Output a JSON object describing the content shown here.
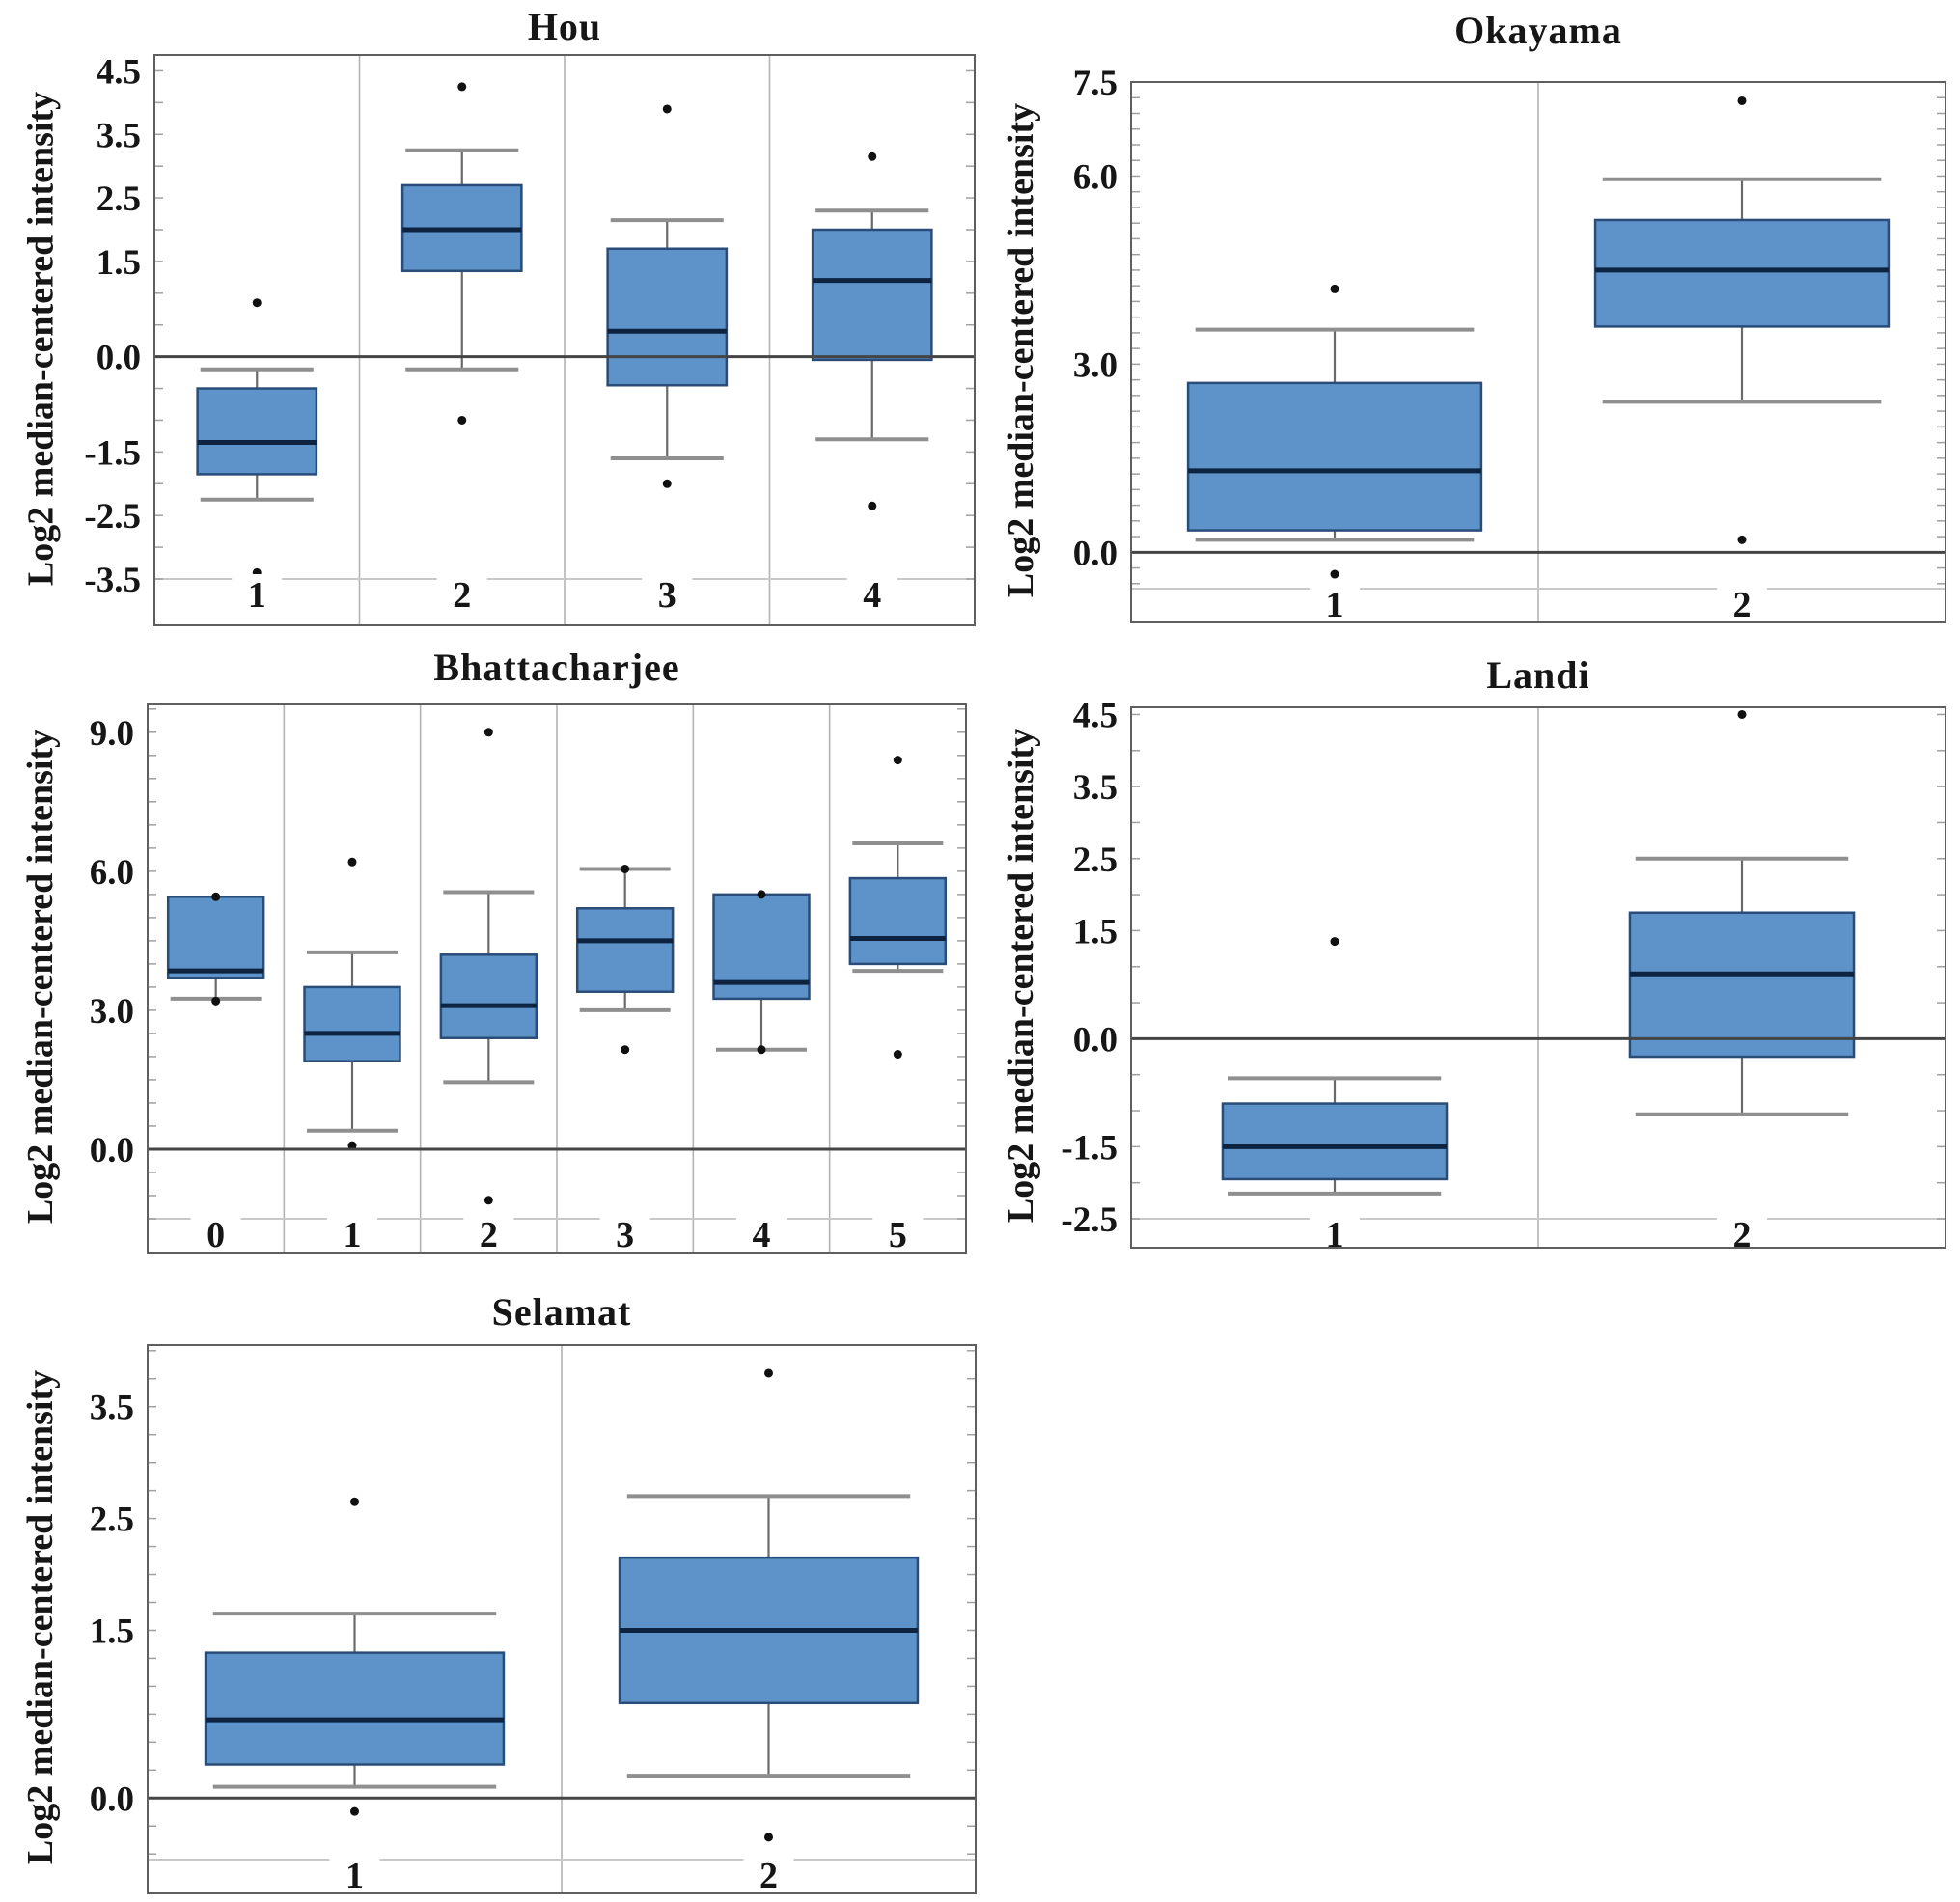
{
  "page": {
    "background": "#ffffff"
  },
  "colors": {
    "box_fill": "#5d93c8",
    "box_border": "#2a4c78",
    "median_line": "#0d2340",
    "whisker": "#6a6a6a",
    "whisker_cap": "#8f8f8f",
    "outlier": "#101010",
    "zero_line": "#454545",
    "plot_border": "#5f5f5f",
    "column_separator": "#b3b3b3",
    "strip_line": "#c9c9c9",
    "minor_tick": "#a0a0a0",
    "text": "#161616"
  },
  "chart_data": [
    {
      "id": "hou",
      "type": "box",
      "title": "Hou",
      "ylabel": "Log2 median-centered intensity",
      "xlabel": "",
      "grid": "column-separators",
      "legend": "none",
      "zero_line": true,
      "ylim": [
        -3.5,
        4.75
      ],
      "yticks": [
        "4.5",
        "3.5",
        "2.5",
        "1.5",
        "0.0",
        "-1.5",
        "-2.5",
        "-3.5"
      ],
      "categories": [
        "1",
        "2",
        "3",
        "4"
      ],
      "boxes": [
        {
          "category": "1",
          "whisker_low": -2.25,
          "q1": -1.85,
          "median": -1.35,
          "q3": -0.5,
          "whisker_high": -0.2,
          "outliers": [
            0.85,
            -3.4
          ]
        },
        {
          "category": "2",
          "whisker_low": -0.2,
          "q1": 1.35,
          "median": 2.0,
          "q3": 2.7,
          "whisker_high": 3.25,
          "outliers": [
            4.25,
            -1.0
          ]
        },
        {
          "category": "3",
          "whisker_low": -1.6,
          "q1": -0.45,
          "median": 0.4,
          "q3": 1.7,
          "whisker_high": 2.15,
          "outliers": [
            3.9,
            -2.0
          ]
        },
        {
          "category": "4",
          "whisker_low": -1.3,
          "q1": -0.05,
          "median": 1.2,
          "q3": 2.0,
          "whisker_high": 2.3,
          "outliers": [
            3.15,
            -2.35
          ]
        }
      ]
    },
    {
      "id": "okayama",
      "type": "box",
      "title": "Okayama",
      "ylabel": "Log2 median-centered intensity",
      "xlabel": "",
      "grid": "column-separators",
      "legend": "none",
      "zero_line": true,
      "ylim": [
        -0.58,
        7.5
      ],
      "yticks": [
        "7.5",
        "6.0",
        "3.0",
        "0.0"
      ],
      "categories": [
        "1",
        "2"
      ],
      "boxes": [
        {
          "category": "1",
          "whisker_low": 0.2,
          "q1": 0.35,
          "median": 1.3,
          "q3": 2.7,
          "whisker_high": 3.55,
          "outliers": [
            4.2,
            -0.35
          ]
        },
        {
          "category": "2",
          "whisker_low": 2.4,
          "q1": 3.6,
          "median": 4.5,
          "q3": 5.3,
          "whisker_high": 5.95,
          "outliers": [
            7.2,
            0.2
          ]
        }
      ]
    },
    {
      "id": "bhattacharjee",
      "type": "box",
      "title": "Bhattacharjee",
      "ylabel": "Log2 median-centered intensity",
      "xlabel": "",
      "grid": "column-separators",
      "legend": "none",
      "zero_line": true,
      "ylim": [
        -1.5,
        9.6
      ],
      "yticks": [
        "9.0",
        "6.0",
        "3.0",
        "0.0"
      ],
      "categories": [
        "0",
        "1",
        "2",
        "3",
        "4",
        "5"
      ],
      "boxes": [
        {
          "category": "0",
          "whisker_low": 3.25,
          "q1": 3.7,
          "median": 3.85,
          "q3": 5.45,
          "whisker_high": 5.45,
          "outliers": [
            5.45,
            3.2
          ]
        },
        {
          "category": "1",
          "whisker_low": 0.4,
          "q1": 1.9,
          "median": 2.5,
          "q3": 3.5,
          "whisker_high": 4.25,
          "outliers": [
            6.2,
            0.08
          ]
        },
        {
          "category": "2",
          "whisker_low": 1.45,
          "q1": 2.4,
          "median": 3.1,
          "q3": 4.2,
          "whisker_high": 5.55,
          "outliers": [
            9.0,
            -1.1
          ]
        },
        {
          "category": "3",
          "whisker_low": 3.0,
          "q1": 3.4,
          "median": 4.5,
          "q3": 5.2,
          "whisker_high": 6.05,
          "outliers": [
            6.05,
            2.15
          ]
        },
        {
          "category": "4",
          "whisker_low": 2.15,
          "q1": 3.25,
          "median": 3.6,
          "q3": 5.5,
          "whisker_high": 5.5,
          "outliers": [
            5.5,
            2.15
          ]
        },
        {
          "category": "5",
          "whisker_low": 3.85,
          "q1": 4.0,
          "median": 4.55,
          "q3": 5.85,
          "whisker_high": 6.6,
          "outliers": [
            8.4,
            2.05
          ]
        }
      ]
    },
    {
      "id": "landi",
      "type": "box",
      "title": "Landi",
      "ylabel": "Log2 median-centered intensity",
      "xlabel": "",
      "grid": "column-separators",
      "legend": "none",
      "zero_line": true,
      "ylim": [
        -2.5,
        4.6
      ],
      "yticks": [
        "4.5",
        "3.5",
        "2.5",
        "1.5",
        "0.0",
        "-1.5",
        "-2.5"
      ],
      "categories": [
        "1",
        "2"
      ],
      "boxes": [
        {
          "category": "1",
          "whisker_low": -2.15,
          "q1": -1.95,
          "median": -1.5,
          "q3": -0.9,
          "whisker_high": -0.55,
          "outliers": [
            1.35
          ]
        },
        {
          "category": "2",
          "whisker_low": -1.05,
          "q1": -0.25,
          "median": 0.9,
          "q3": 1.75,
          "whisker_high": 2.5,
          "outliers": [
            4.5
          ]
        }
      ]
    },
    {
      "id": "selamat",
      "type": "box",
      "title": "Selamat",
      "ylabel": "Log2 median-centered intensity",
      "xlabel": "",
      "grid": "column-separators",
      "legend": "none",
      "zero_line": true,
      "ylim": [
        -0.55,
        4.05
      ],
      "yticks": [
        "3.5",
        "2.5",
        "1.5",
        "0.0"
      ],
      "categories": [
        "1",
        "2"
      ],
      "boxes": [
        {
          "category": "1",
          "whisker_low": 0.1,
          "q1": 0.3,
          "median": 0.7,
          "q3": 1.3,
          "whisker_high": 1.65,
          "outliers": [
            2.65,
            -0.12
          ]
        },
        {
          "category": "2",
          "whisker_low": 0.2,
          "q1": 0.85,
          "median": 1.5,
          "q3": 2.15,
          "whisker_high": 2.7,
          "outliers": [
            3.8,
            -0.35
          ]
        }
      ]
    }
  ]
}
